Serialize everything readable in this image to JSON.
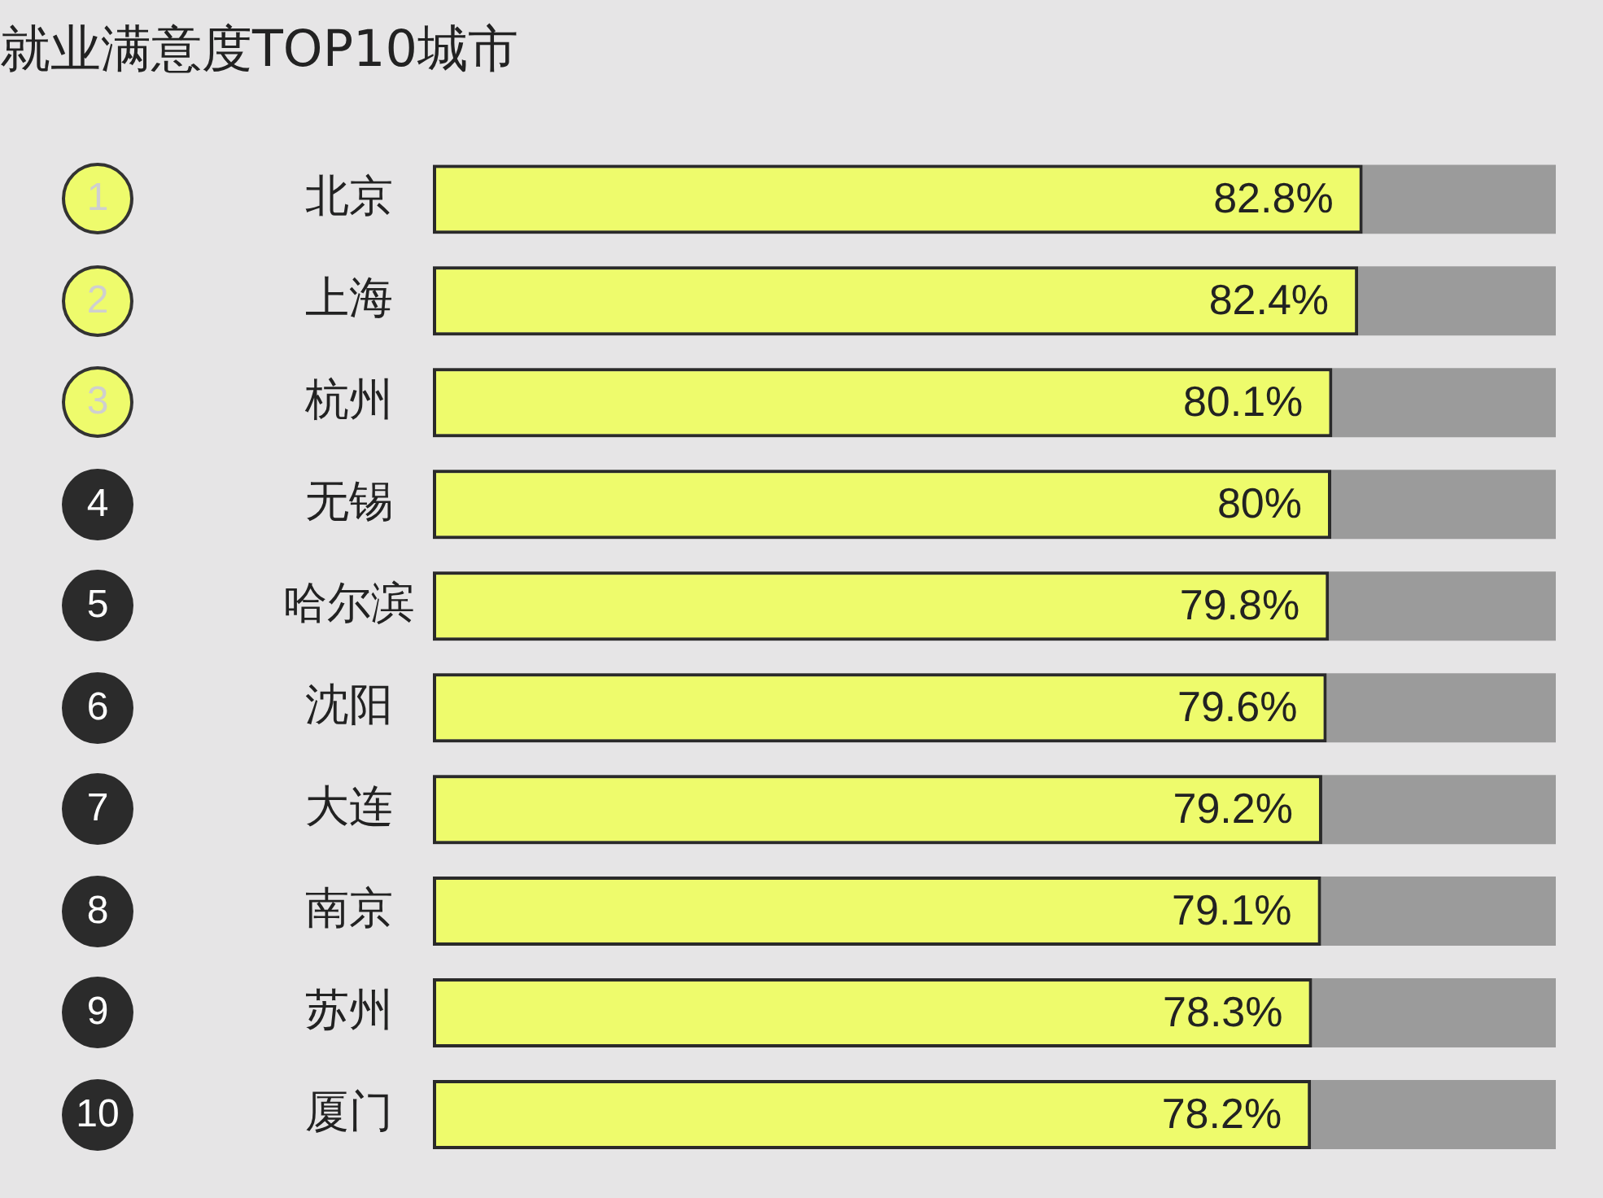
{
  "chart_data": {
    "type": "bar",
    "orientation": "horizontal",
    "title": "就业满意度TOP10城市",
    "categories": [
      "北京",
      "上海",
      "杭州",
      "无锡",
      "哈尔滨",
      "沈阳",
      "大连",
      "南京",
      "苏州",
      "厦门"
    ],
    "series": [
      {
        "color": "#eefb6c",
        "values": [
          82.8,
          82.4,
          80.1,
          80,
          79.8,
          79.6,
          79.2,
          79.1,
          78.3,
          78.2
        ],
        "value_labels": [
          "82.8%",
          "82.4%",
          "80.1%",
          "80%",
          "79.8%",
          "79.6%",
          "79.2%",
          "79.1%",
          "78.3%",
          "78.2%"
        ]
      }
    ],
    "annotations": [
      "1",
      "2",
      "3",
      "4",
      "5",
      "6",
      "7",
      "8",
      "9",
      "10"
    ],
    "grid": false,
    "legend": false,
    "tick_labels": "y"
  }
}
